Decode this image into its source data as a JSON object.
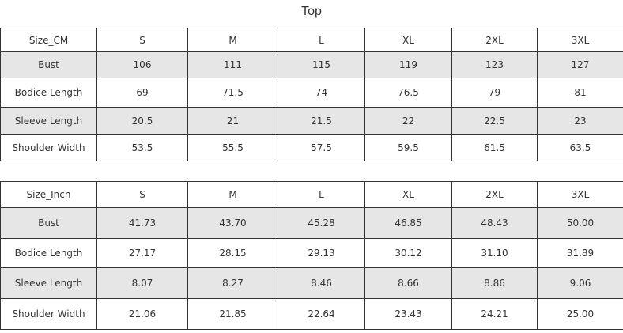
{
  "title": "Top",
  "tables": [
    {
      "header": [
        "Size_CM",
        "S",
        "M",
        "L",
        "XL",
        "2XL",
        "3XL"
      ],
      "rows": [
        [
          "Bust",
          "106",
          "111",
          "115",
          "119",
          "123",
          "127"
        ],
        [
          "Bodice Length",
          "69",
          "71.5",
          "74",
          "76.5",
          "79",
          "81"
        ],
        [
          "Sleeve Length",
          "20.5",
          "21",
          "21.5",
          "22",
          "22.5",
          "23"
        ],
        [
          "Shoulder Width",
          "53.5",
          "55.5",
          "57.5",
          "59.5",
          "61.5",
          "63.5"
        ]
      ]
    },
    {
      "header": [
        "Size_Inch",
        "S",
        "M",
        "L",
        "XL",
        "2XL",
        "3XL"
      ],
      "rows": [
        [
          "Bust",
          "41.73",
          "43.70",
          "45.28",
          "46.85",
          "48.43",
          "50.00"
        ],
        [
          "Bodice Length",
          "27.17",
          "28.15",
          "29.13",
          "30.12",
          "31.10",
          "31.89"
        ],
        [
          "Sleeve Length",
          "8.07",
          "8.27",
          "8.46",
          "8.66",
          "8.86",
          "9.06"
        ],
        [
          "Shoulder Width",
          "21.06",
          "21.85",
          "22.64",
          "23.43",
          "24.21",
          "25.00"
        ]
      ]
    }
  ]
}
